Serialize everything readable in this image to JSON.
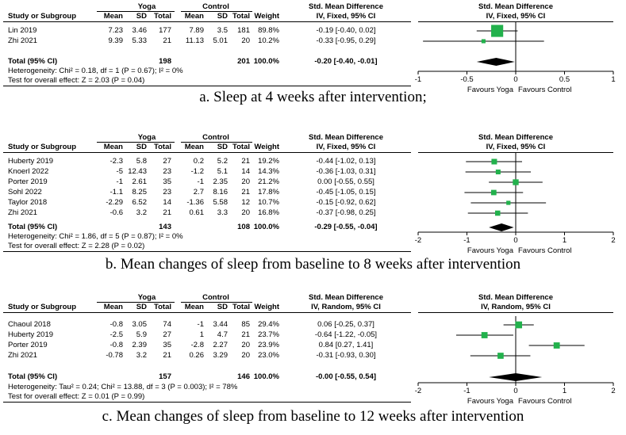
{
  "columns": {
    "study": "Study or Subgroup",
    "mean": "Mean",
    "sd": "SD",
    "total": "Total",
    "weight": "Weight",
    "smd": "Std. Mean Difference",
    "yoga": "Yoga",
    "control": "Control"
  },
  "footer_labels": {
    "total_row": "Total (95% CI)",
    "favours_left": "Favours Yoga",
    "favours_right": "Favours Control"
  },
  "chart_data": [
    {
      "type": "forest",
      "title": "a. Sleep at 4 weeks after intervention;",
      "method": "IV, Fixed, 95% CI",
      "rows": [
        {
          "study": "Lin 2019",
          "y_mean": "7.23",
          "y_sd": "3.46",
          "y_total": "177",
          "c_mean": "7.89",
          "c_sd": "3.5",
          "c_total": "181",
          "weight": "89.8%",
          "ci_text": "-0.19 [-0.40, 0.02]",
          "est": -0.19,
          "lo": -0.4,
          "hi": 0.02,
          "w": 89.8
        },
        {
          "study": "Zhi 2021",
          "y_mean": "9.39",
          "y_sd": "5.33",
          "y_total": "21",
          "c_mean": "11.13",
          "c_sd": "5.01",
          "c_total": "20",
          "weight": "10.2%",
          "ci_text": "-0.33 [-0.95, 0.29]",
          "est": -0.33,
          "lo": -0.95,
          "hi": 0.29,
          "w": 10.2
        }
      ],
      "total": {
        "y_total": "198",
        "c_total": "201",
        "weight": "100.0%",
        "ci_text": "-0.20 [-0.40, -0.01]",
        "est": -0.2,
        "lo": -0.4,
        "hi": -0.01
      },
      "heterogeneity": "Heterogeneity: Chi² = 0.18, df = 1 (P = 0.67); I² = 0%",
      "overall": "Test for overall effect: Z = 2.03 (P = 0.04)",
      "xlim": [
        -1,
        1
      ],
      "ticks": [
        "-1",
        "-0.5",
        "0",
        "0.5",
        "1"
      ],
      "tick_values": [
        -1,
        -0.5,
        0,
        0.5,
        1
      ]
    },
    {
      "type": "forest",
      "title": "b. Mean changes of sleep from baseline to 8 weeks after intervention",
      "method": "IV, Fixed, 95% CI",
      "rows": [
        {
          "study": "Huberty 2019",
          "y_mean": "-2.3",
          "y_sd": "5.8",
          "y_total": "27",
          "c_mean": "0.2",
          "c_sd": "5.2",
          "c_total": "21",
          "weight": "19.2%",
          "ci_text": "-0.44 [-1.02, 0.13]",
          "est": -0.44,
          "lo": -1.02,
          "hi": 0.13,
          "w": 19.2
        },
        {
          "study": "Knoerl 2022",
          "y_mean": "-5",
          "y_sd": "12.43",
          "y_total": "23",
          "c_mean": "-1.2",
          "c_sd": "5.1",
          "c_total": "14",
          "weight": "14.3%",
          "ci_text": "-0.36 [-1.03, 0.31]",
          "est": -0.36,
          "lo": -1.03,
          "hi": 0.31,
          "w": 14.3
        },
        {
          "study": "Porter 2019",
          "y_mean": "-1",
          "y_sd": "2.61",
          "y_total": "35",
          "c_mean": "-1",
          "c_sd": "2.35",
          "c_total": "20",
          "weight": "21.2%",
          "ci_text": "0.00 [-0.55, 0.55]",
          "est": 0.0,
          "lo": -0.55,
          "hi": 0.55,
          "w": 21.2
        },
        {
          "study": "Sohl 2022",
          "y_mean": "-1.1",
          "y_sd": "8.25",
          "y_total": "23",
          "c_mean": "2.7",
          "c_sd": "8.16",
          "c_total": "21",
          "weight": "17.8%",
          "ci_text": "-0.45 [-1.05, 0.15]",
          "est": -0.45,
          "lo": -1.05,
          "hi": 0.15,
          "w": 17.8
        },
        {
          "study": "Taylor 2018",
          "y_mean": "-2.29",
          "y_sd": "6.52",
          "y_total": "14",
          "c_mean": "-1.36",
          "c_sd": "5.58",
          "c_total": "12",
          "weight": "10.7%",
          "ci_text": "-0.15 [-0.92, 0.62]",
          "est": -0.15,
          "lo": -0.92,
          "hi": 0.62,
          "w": 10.7
        },
        {
          "study": "Zhi 2021",
          "y_mean": "-0.6",
          "y_sd": "3.2",
          "y_total": "21",
          "c_mean": "0.61",
          "c_sd": "3.3",
          "c_total": "20",
          "weight": "16.8%",
          "ci_text": "-0.37 [-0.98, 0.25]",
          "est": -0.37,
          "lo": -0.98,
          "hi": 0.25,
          "w": 16.8
        }
      ],
      "total": {
        "y_total": "143",
        "c_total": "108",
        "weight": "100.0%",
        "ci_text": "-0.29 [-0.55, -0.04]",
        "est": -0.29,
        "lo": -0.55,
        "hi": -0.04
      },
      "heterogeneity": "Heterogeneity: Chi² = 1.86, df = 5 (P = 0.87); I² = 0%",
      "overall": "Test for overall effect: Z = 2.28 (P = 0.02)",
      "xlim": [
        -2,
        2
      ],
      "ticks": [
        "-2",
        "-1",
        "0",
        "1",
        "2"
      ],
      "tick_values": [
        -2,
        -1,
        0,
        1,
        2
      ]
    },
    {
      "type": "forest",
      "title": "c. Mean changes of sleep from baseline to 12 weeks after intervention",
      "method": "IV, Random, 95% CI",
      "rows": [
        {
          "study": "Chaoul 2018",
          "y_mean": "-0.8",
          "y_sd": "3.05",
          "y_total": "74",
          "c_mean": "-1",
          "c_sd": "3.44",
          "c_total": "85",
          "weight": "29.4%",
          "ci_text": "0.06 [-0.25, 0.37]",
          "est": 0.06,
          "lo": -0.25,
          "hi": 0.37,
          "w": 29.4
        },
        {
          "study": "Huberty 2019",
          "y_mean": "-2.5",
          "y_sd": "5.9",
          "y_total": "27",
          "c_mean": "1",
          "c_sd": "4.7",
          "c_total": "21",
          "weight": "23.7%",
          "ci_text": "-0.64 [-1.22, -0.05]",
          "est": -0.64,
          "lo": -1.22,
          "hi": -0.05,
          "w": 23.7
        },
        {
          "study": "Porter 2019",
          "y_mean": "-0.8",
          "y_sd": "2.39",
          "y_total": "35",
          "c_mean": "-2.8",
          "c_sd": "2.27",
          "c_total": "20",
          "weight": "23.9%",
          "ci_text": "0.84 [0.27, 1.41]",
          "est": 0.84,
          "lo": 0.27,
          "hi": 1.41,
          "w": 23.9
        },
        {
          "study": "Zhi 2021",
          "y_mean": "-0.78",
          "y_sd": "3.2",
          "y_total": "21",
          "c_mean": "0.26",
          "c_sd": "3.29",
          "c_total": "20",
          "weight": "23.0%",
          "ci_text": "-0.31 [-0.93, 0.30]",
          "est": -0.31,
          "lo": -0.93,
          "hi": 0.3,
          "w": 23.0
        }
      ],
      "total": {
        "y_total": "157",
        "c_total": "146",
        "weight": "100.0%",
        "ci_text": "-0.00 [-0.55, 0.54]",
        "est": -0.0,
        "lo": -0.55,
        "hi": 0.54
      },
      "heterogeneity": "Heterogeneity: Tau² = 0.24; Chi² = 13.88, df = 3 (P = 0.003); I² = 78%",
      "overall": "Test for overall effect: Z = 0.01 (P = 0.99)",
      "xlim": [
        -2,
        2
      ],
      "ticks": [
        "-2",
        "-1",
        "0",
        "1",
        "2"
      ],
      "tick_values": [
        -2,
        -1,
        0,
        1,
        2
      ]
    }
  ],
  "colors": {
    "square": "#22b14c",
    "diamond": "#000000",
    "text": "#000000"
  }
}
